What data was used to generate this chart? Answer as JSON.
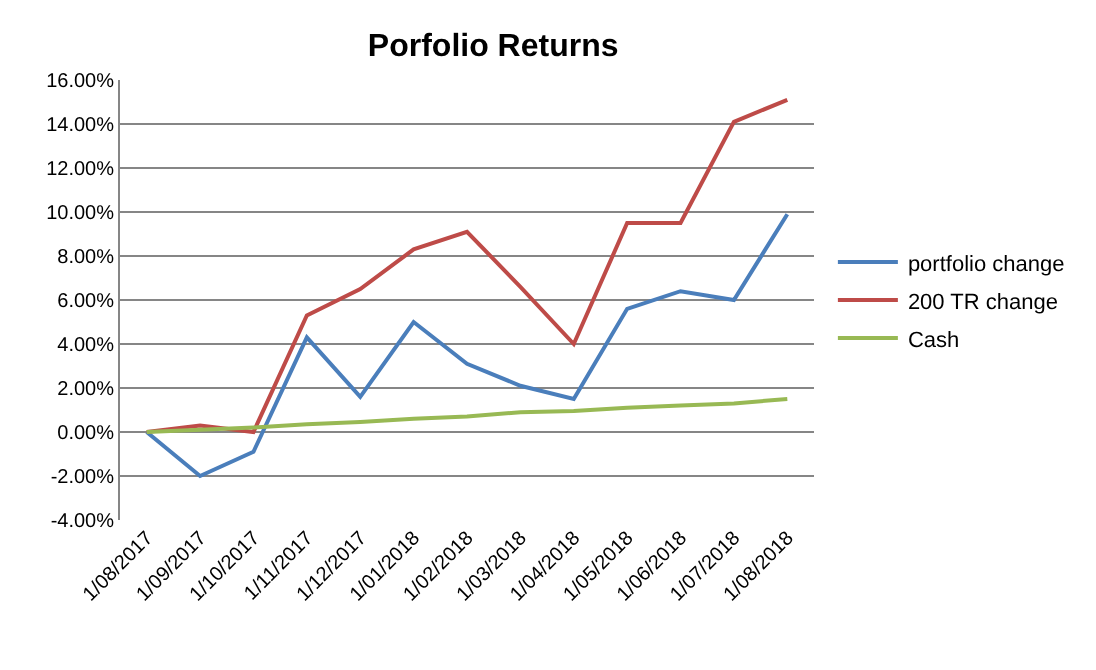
{
  "chart_data": {
    "type": "line",
    "title": "Porfolio Returns",
    "categories": [
      "1/08/2017",
      "1/09/2017",
      "1/10/2017",
      "1/11/2017",
      "1/12/2017",
      "1/01/2018",
      "1/02/2018",
      "1/03/2018",
      "1/04/2018",
      "1/05/2018",
      "1/06/2018",
      "1/07/2018",
      "1/08/2018"
    ],
    "series": [
      {
        "name": "portfolio change",
        "color": "#4a7ebb",
        "values": [
          0,
          -2.0,
          -0.9,
          4.3,
          1.6,
          5.0,
          3.1,
          2.1,
          1.5,
          5.6,
          6.4,
          6.0,
          9.9
        ]
      },
      {
        "name": "200 TR change",
        "color": "#be4b48",
        "values": [
          0,
          0.3,
          0,
          5.3,
          6.5,
          8.3,
          9.1,
          6.6,
          4.0,
          9.5,
          9.5,
          14.1,
          15.1
        ]
      },
      {
        "name": "Cash",
        "color": "#98b954",
        "values": [
          0,
          0.1,
          0.2,
          0.35,
          0.45,
          0.6,
          0.7,
          0.9,
          0.95,
          1.1,
          1.2,
          1.3,
          1.5
        ]
      }
    ],
    "ylim": [
      -4,
      16
    ],
    "yticks": [
      {
        "value": -4,
        "label": "-4.00%"
      },
      {
        "value": -2,
        "label": "-2.00%"
      },
      {
        "value": 0,
        "label": "0.00%"
      },
      {
        "value": 2,
        "label": "2.00%"
      },
      {
        "value": 4,
        "label": "4.00%"
      },
      {
        "value": 6,
        "label": "6.00%"
      },
      {
        "value": 8,
        "label": "8.00%"
      },
      {
        "value": 10,
        "label": "10.00%"
      },
      {
        "value": 12,
        "label": "12.00%"
      },
      {
        "value": 14,
        "label": "14.00%"
      },
      {
        "value": 16,
        "label": "16.00%"
      }
    ],
    "grid": "y",
    "legend": "right",
    "marker": "none",
    "line_style": "solid"
  }
}
